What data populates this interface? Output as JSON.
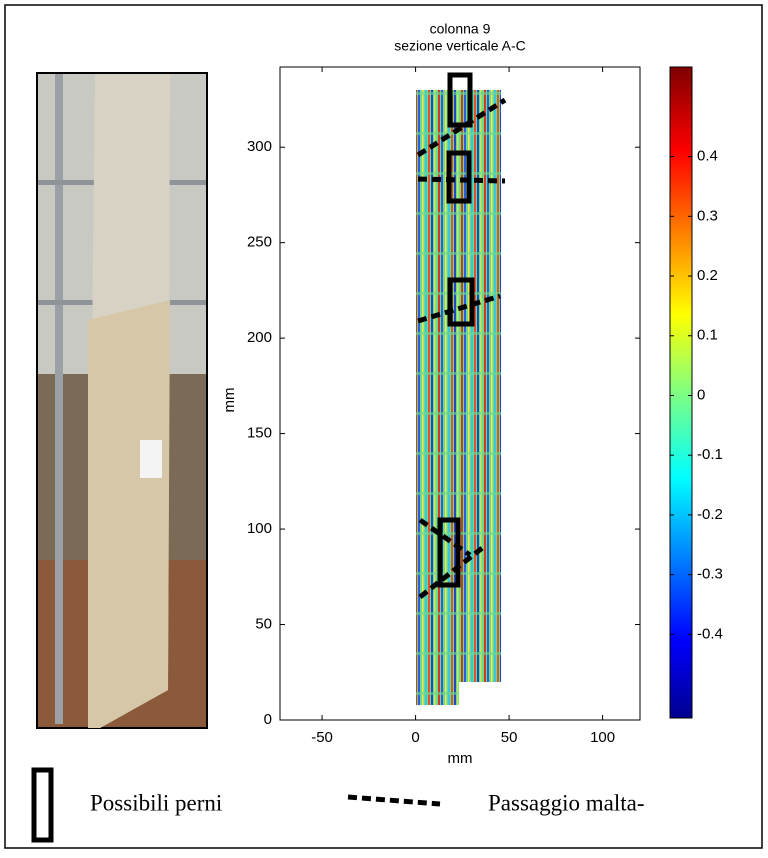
{
  "chart_data": {
    "type": "heatmap",
    "title": [
      "colonna 9",
      "sezione verticale A-C"
    ],
    "xlabel": "mm",
    "ylabel": "mm",
    "xlim": [
      -72.5,
      120
    ],
    "xticks": [
      -50,
      0,
      50,
      100
    ],
    "ylim": [
      0,
      342
    ],
    "yticks": [
      0,
      50,
      100,
      150,
      200,
      250,
      300
    ],
    "colorbar": {
      "lim": [
        -0.54,
        0.55
      ],
      "ticks": [
        -0.4,
        -0.3,
        -0.2,
        -0.1,
        0,
        0.1,
        0.2,
        0.3,
        0.4
      ]
    }
  },
  "legend": [
    {
      "label": "Possibili perni"
    },
    {
      "label": "Passaggio malta-"
    }
  ]
}
